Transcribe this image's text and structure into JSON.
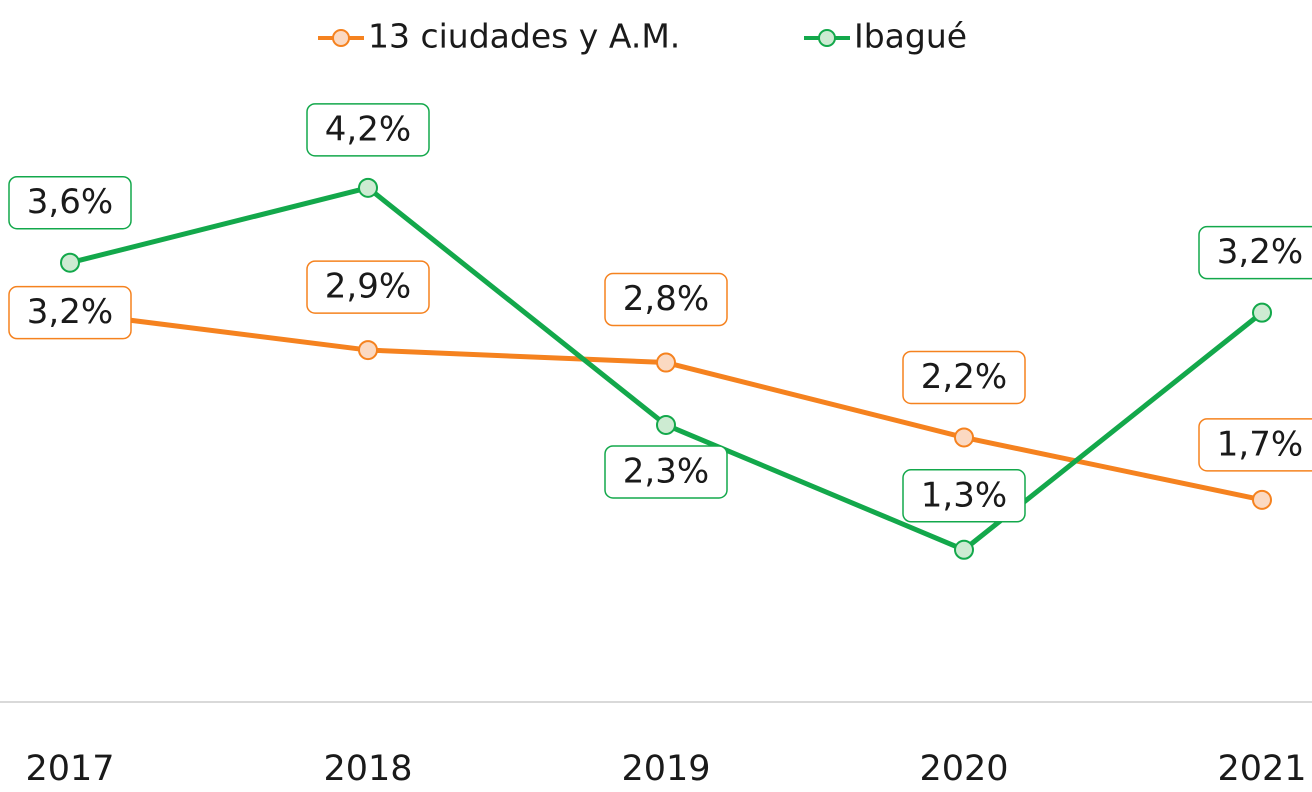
{
  "chart_data": {
    "type": "line",
    "categories": [
      "2017",
      "2018",
      "2019",
      "2020",
      "2021"
    ],
    "series": [
      {
        "name": "13 ciudades y A.M.",
        "color": "#f5821f",
        "marker_fill": "#fbd9c2",
        "values": [
          3.2,
          2.9,
          2.8,
          2.2,
          1.7
        ],
        "value_labels": [
          "3,2%",
          "2,9%",
          "2,8%",
          "2,2%",
          "1,7%"
        ]
      },
      {
        "name": "Ibagué",
        "color": "#13a84b",
        "marker_fill": "#cdebd2",
        "values": [
          3.6,
          4.2,
          2.3,
          1.3,
          3.2
        ],
        "value_labels": [
          "3,6%",
          "4,2%",
          "2,3%",
          "1,3%",
          "3,2%"
        ]
      }
    ],
    "ylim": [
      0,
      5
    ],
    "legend": "top",
    "grid": false
  }
}
